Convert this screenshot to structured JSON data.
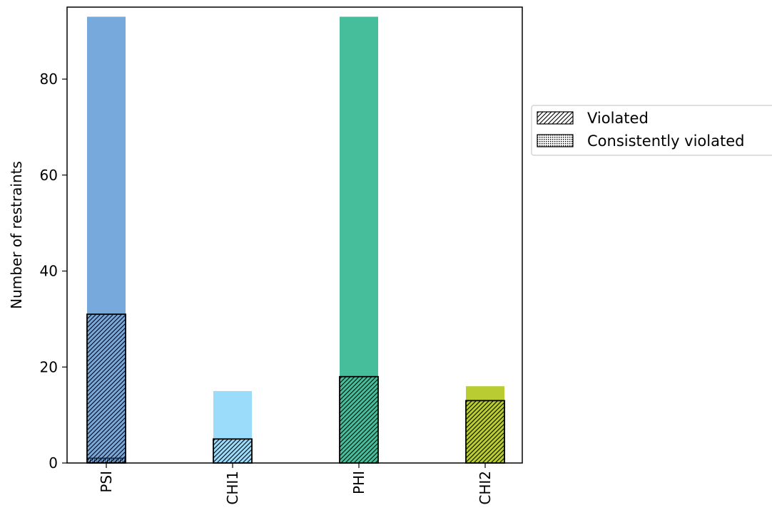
{
  "chart_data": {
    "type": "bar",
    "title": "",
    "xlabel": "",
    "ylabel": "Number of restraints",
    "categories": [
      "PSI",
      "CHI1",
      "PHI",
      "CHI2"
    ],
    "colors": [
      "#78a9dc",
      "#9adcfa",
      "#46be9b",
      "#b9cd32"
    ],
    "series": [
      {
        "name": "",
        "values": [
          93,
          15,
          93,
          16
        ]
      },
      {
        "name": "Violated",
        "values": [
          31,
          5,
          18,
          13
        ]
      },
      {
        "name": "Consistently violated",
        "values": [
          1,
          0,
          0,
          0
        ]
      }
    ],
    "ylim": [
      0,
      95
    ],
    "yticks": [
      0,
      20,
      40,
      60,
      80
    ],
    "grid": false,
    "legend": {
      "placement": "outside-right",
      "entries": [
        "Violated",
        "Consistently violated"
      ]
    }
  }
}
